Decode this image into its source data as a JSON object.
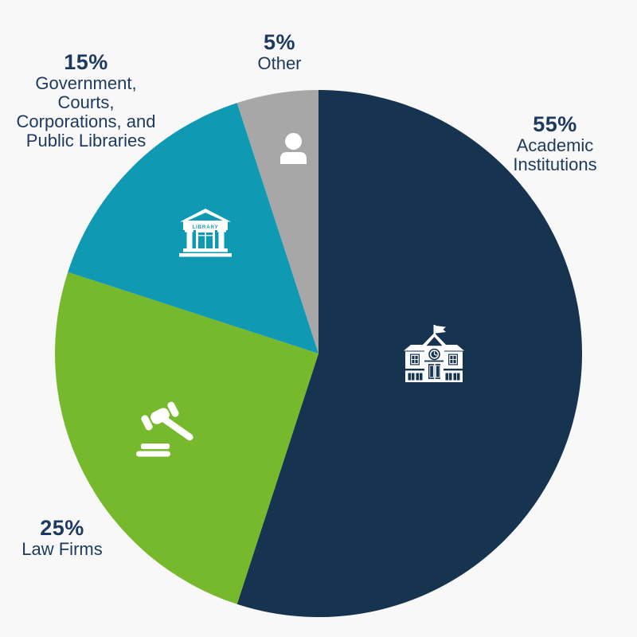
{
  "background_color": "#f7f8f7",
  "text_color": "#1d3a5e",
  "chart_data": {
    "type": "pie",
    "title": "",
    "start_angle_deg": 0,
    "direction": "clockwise",
    "total_pct": 100,
    "legend": "labels placed around pie, icons inside slices",
    "segments": [
      {
        "label": "Academic Institutions",
        "value_pct": 55,
        "pct_label": "55%",
        "color": "#16334f",
        "icon": "school-building-icon",
        "label_lines": [
          "Academic",
          "Institutions"
        ]
      },
      {
        "label": "Law Firms",
        "value_pct": 25,
        "pct_label": "25%",
        "color": "#77b92c",
        "icon": "gavel-icon",
        "label_lines": [
          "Law Firms"
        ]
      },
      {
        "label": "Government, Courts, Corporations, and Public Libraries",
        "value_pct": 15,
        "pct_label": "15%",
        "color": "#1099b3",
        "icon": "library-building-icon",
        "label_lines": [
          "Government,",
          "Courts,",
          "Corporations, and",
          "Public Libraries"
        ]
      },
      {
        "label": "Other",
        "value_pct": 5,
        "pct_label": "5%",
        "color": "#a7a7a7",
        "icon": "person-icon",
        "label_lines": [
          "Other"
        ]
      }
    ],
    "icon_texts": {
      "library_sign": "LIBRARY"
    }
  }
}
